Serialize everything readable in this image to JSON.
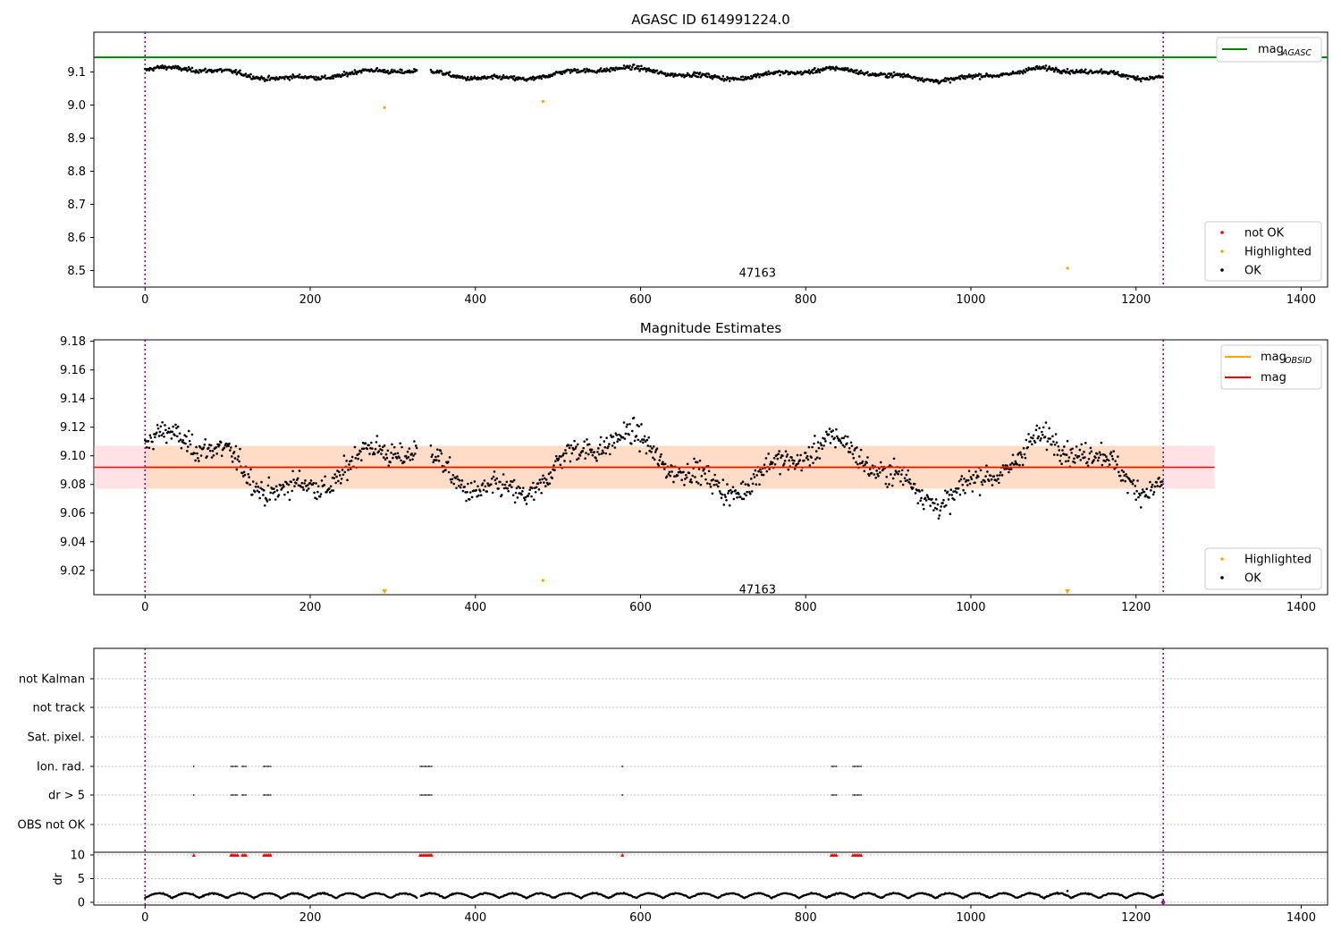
{
  "chart_data": [
    {
      "type": "scatter",
      "title": "AGASC ID 614991224.0",
      "xlim": [
        -62,
        1432
      ],
      "ylim": [
        8.45,
        9.22
      ],
      "xticks": [
        0,
        200,
        400,
        600,
        800,
        1000,
        1200,
        1400
      ],
      "yticks": [
        8.5,
        8.6,
        8.7,
        8.8,
        8.9,
        9.0,
        9.1
      ],
      "ytick_labels": [
        "8.5",
        "8.6",
        "8.7",
        "8.8",
        "8.9",
        "9.0",
        "9.1"
      ],
      "grid": false,
      "obsid_label": "47163",
      "obsid_label_x": 615,
      "obsid_label_y": 8.47,
      "obsid_bounds": [
        0,
        1233
      ],
      "hlines": [
        {
          "name": "mag_AGASC",
          "y": 9.144,
          "color": "#008000"
        }
      ],
      "ok_series": {
        "label": "OK",
        "color": "#000000",
        "offset": 0.0,
        "n": 1233,
        "base": 9.092,
        "amp": 0.022,
        "noise": 0.011,
        "gaps": [
          [
            330,
            345
          ],
          [
            895,
            880
          ]
        ],
        "gap_ranges": [
          [
            330,
            346
          ]
        ]
      },
      "highlighted_points": [
        {
          "x": 290,
          "y": 8.992
        },
        {
          "x": 482,
          "y": 9.011
        },
        {
          "x": 1117,
          "y": 8.507
        }
      ],
      "highlight_color": "#ffa500",
      "notok_color": "#ff0000",
      "legend_top": {
        "placement": "top-right",
        "entries": [
          {
            "label": "mag",
            "sub": "AGASC",
            "color": "#008000"
          }
        ]
      },
      "legend_bottom": {
        "placement": "bottom-right",
        "entries": [
          {
            "label": "not OK",
            "color": "#ff0000"
          },
          {
            "label": "Highlighted",
            "color": "#ffa500"
          },
          {
            "label": "OK",
            "color": "#000000"
          }
        ]
      }
    },
    {
      "type": "scatter",
      "title": "Magnitude Estimates",
      "xlim": [
        -62,
        1432
      ],
      "ylim": [
        9.003,
        9.181
      ],
      "xticks": [
        0,
        200,
        400,
        600,
        800,
        1000,
        1200,
        1400
      ],
      "yticks": [
        9.02,
        9.04,
        9.06,
        9.08,
        9.1,
        9.12,
        9.14,
        9.16,
        9.18
      ],
      "ytick_labels": [
        "9.02",
        "9.04",
        "9.06",
        "9.08",
        "9.10",
        "9.12",
        "9.14",
        "9.16",
        "9.18"
      ],
      "grid": false,
      "obsid_label": "47163",
      "obsid_label_x": 615,
      "obsid_label_y": 9.007,
      "obsid_bounds": [
        0,
        1233
      ],
      "mag_line": {
        "name": "mag",
        "y": 9.092,
        "color": "#ff0000"
      },
      "mag_band": {
        "low": 9.077,
        "high": 9.107,
        "x0": -62,
        "x1": 1295,
        "color": "#ffb6c1"
      },
      "obsid_band": {
        "low": 9.077,
        "high": 9.107,
        "x0": 0,
        "x1": 1233,
        "color": "#ffdab9"
      },
      "obsid_line": {
        "name": "mag_OBSID",
        "y": 9.092,
        "color": "#ffa500"
      },
      "highlighted_points": [
        {
          "x": 482,
          "y": 9.013
        }
      ],
      "highlight_markers_below": [
        {
          "x": 290
        },
        {
          "x": 1117
        }
      ],
      "highlight_color": "#ffa500",
      "legend_top": {
        "placement": "top-right",
        "entries": [
          {
            "label": "mag",
            "sub": "OBSID",
            "color": "#ffa500"
          },
          {
            "label": "mag",
            "sub": "",
            "color": "#ff0000"
          }
        ]
      },
      "legend_bottom": {
        "placement": "bottom-right",
        "entries": [
          {
            "label": "Highlighted",
            "color": "#ffa500"
          },
          {
            "label": "OK",
            "color": "#000000"
          }
        ]
      }
    },
    {
      "type": "scatter",
      "title": "",
      "xlim": [
        -62,
        1432
      ],
      "xticks": [
        0,
        200,
        400,
        600,
        800,
        1000,
        1200,
        1400
      ],
      "flag_rows": [
        "not Kalman",
        "not track",
        "Sat. pixel.",
        "Ion. rad.",
        "dr > 5",
        "OBS not OK"
      ],
      "flag_events": {
        "Ion. rad.": [
          [
            59,
            60
          ],
          [
            104,
            113
          ],
          [
            118,
            122
          ],
          [
            144,
            152
          ],
          [
            333,
            348
          ],
          [
            578,
            579
          ],
          [
            831,
            837
          ],
          [
            857,
            867
          ]
        ],
        "dr > 5": [
          [
            59,
            60
          ],
          [
            104,
            113
          ],
          [
            118,
            122
          ],
          [
            144,
            152
          ],
          [
            333,
            348
          ],
          [
            578,
            579
          ],
          [
            831,
            837
          ],
          [
            857,
            867
          ]
        ]
      },
      "dr_panel": {
        "ylabel": "dr",
        "yticks": [
          0,
          5,
          10
        ],
        "ytick_labels": [
          "0",
          "5",
          "10"
        ],
        "ylim": [
          -0.5,
          10.5
        ],
        "typical_dr": [
          0.8,
          1.8
        ],
        "spike": {
          "x": 1117,
          "y": 2.4
        },
        "red_points_at": 10
      }
    }
  ]
}
